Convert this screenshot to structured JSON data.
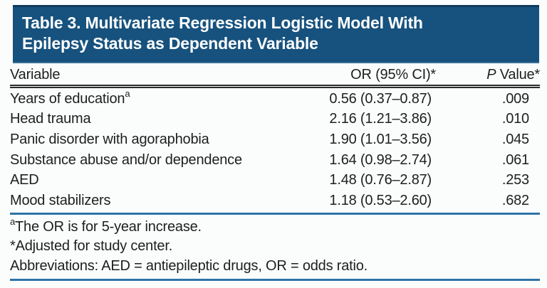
{
  "table": {
    "title_line1": "Table 3. Multivariate Regression Logistic Model With",
    "title_line2": "Epilepsy Status as Dependent Variable",
    "columns": {
      "variable": "Variable",
      "or_ci": "OR (95% CI)*",
      "p_italic": "P",
      "p_rest": " Value*"
    },
    "rows": [
      {
        "variable": "Years of education",
        "variable_sup": "a",
        "or_ci": "0.56 (0.37–0.87)",
        "p": ".009"
      },
      {
        "variable": "Head trauma",
        "variable_sup": "",
        "or_ci": "2.16 (1.21–3.86)",
        "p": ".010"
      },
      {
        "variable": "Panic disorder with agoraphobia",
        "variable_sup": "",
        "or_ci": "1.90 (1.01–3.56)",
        "p": ".045"
      },
      {
        "variable": "Substance abuse and/or dependence",
        "variable_sup": "",
        "or_ci": "1.64 (0.98–2.74)",
        "p": ".061"
      },
      {
        "variable": "AED",
        "variable_sup": "",
        "or_ci": "1.48 (0.76–2.87)",
        "p": ".253"
      },
      {
        "variable": "Mood stabilizers",
        "variable_sup": "",
        "or_ci": "1.18 (0.53–2.60)",
        "p": ".682"
      }
    ],
    "footnotes": [
      {
        "sup": "a",
        "text": "The OR is for 5-year increase."
      },
      {
        "sup": "",
        "text": "*Adjusted for study center."
      },
      {
        "sup": "",
        "text": "Abbreviations: AED = antiepileptic drugs, OR = odds ratio."
      }
    ],
    "colors": {
      "header_bg": "#17527E",
      "header_top": "#0F3A5D",
      "header_bottom_edge": "#377097",
      "rule_blue": "#2E74A6",
      "rule_dark": "#2B2B2B",
      "text": "#1E1E1E",
      "page_bg": "#FBFDFD"
    }
  }
}
